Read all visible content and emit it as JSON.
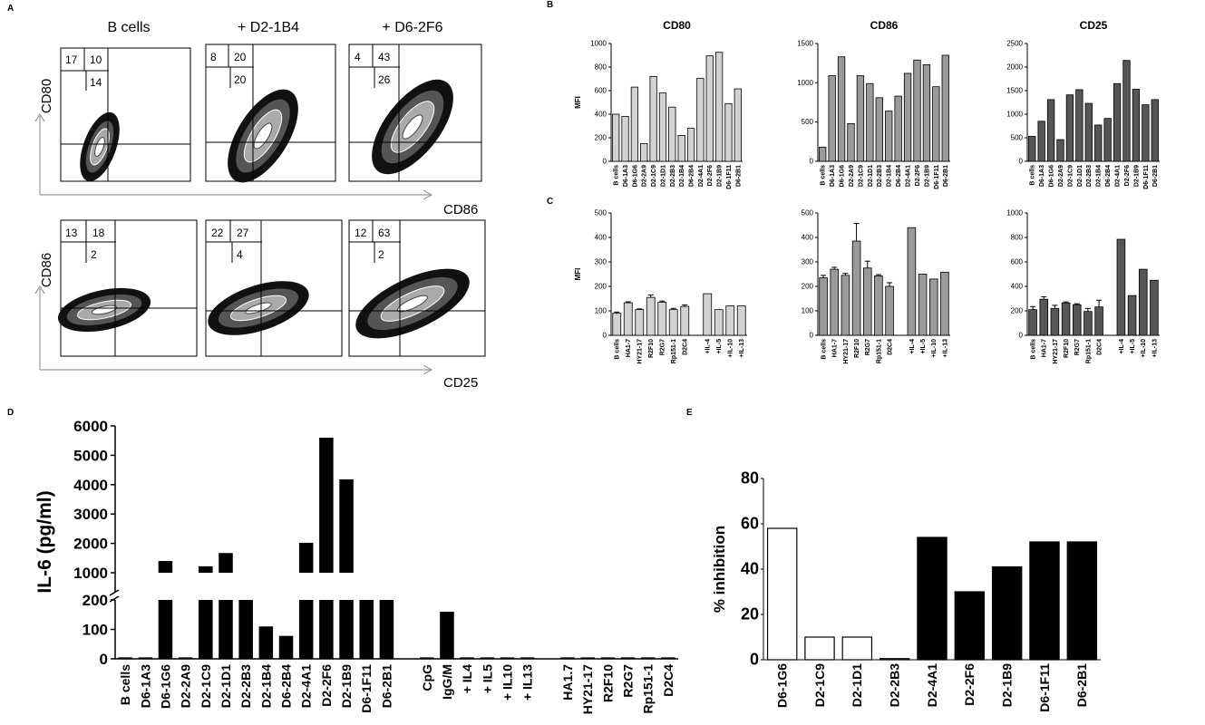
{
  "panel_letters": {
    "a": "A",
    "b": "B",
    "c": "C",
    "d": "D",
    "e": "E"
  },
  "panel_a": {
    "column_titles": [
      "B cells",
      "+ D2-1B4",
      "+ D6-2F6"
    ],
    "top_y_label": "CD80",
    "top_x_label": "CD86",
    "bottom_y_label": "CD86",
    "bottom_x_label": "CD25",
    "top_quadrants": [
      {
        "tl": "17",
        "tr": "10",
        "br": "14"
      },
      {
        "tl": "8",
        "tr": "20",
        "br": "20"
      },
      {
        "tl": "4",
        "tr": "43",
        "br": "26"
      }
    ],
    "bottom_quadrants": [
      {
        "tl": "13",
        "tr": "18",
        "br": "2"
      },
      {
        "tl": "22",
        "tr": "27",
        "br": "4"
      },
      {
        "tl": "12",
        "tr": "63",
        "br": "2"
      }
    ]
  },
  "chart_data": [
    {
      "id": "B-CD80",
      "type": "bar",
      "title": "CD80",
      "ylabel": "MFI",
      "ylim": [
        0,
        1000
      ],
      "yticks": [
        0,
        200,
        400,
        600,
        800,
        1000
      ],
      "color": "#d2d2d2",
      "categories": [
        "B cells",
        "D6-1A3",
        "D6-1G6",
        "D2-2A9",
        "D2-1C9",
        "D2-1D1",
        "D2-2B3",
        "D2-1B4",
        "D6-2B4",
        "D2-4A1",
        "D2-2F6",
        "D2-1B9",
        "D6-1F11",
        "D6-2B1"
      ],
      "values": [
        400,
        380,
        630,
        150,
        720,
        580,
        460,
        220,
        280,
        705,
        895,
        925,
        490,
        615
      ]
    },
    {
      "id": "B-CD86",
      "type": "bar",
      "title": "CD86",
      "ylabel": "",
      "ylim": [
        0,
        1500
      ],
      "yticks": [
        0,
        500,
        1000,
        1500
      ],
      "color": "#9a9a9a",
      "categories": [
        "B cells",
        "D6-1A3",
        "D6-1G6",
        "D2-2A9",
        "D2-1C9",
        "D2-1D1",
        "D2-2B3",
        "D2-1B4",
        "D6-2B4",
        "D2-4A1",
        "D2-2F6",
        "D2-1B9",
        "D6-1F11",
        "D6-2B1"
      ],
      "values": [
        180,
        1090,
        1330,
        480,
        1090,
        990,
        810,
        640,
        830,
        1120,
        1290,
        1230,
        950,
        1350
      ]
    },
    {
      "id": "B-CD25",
      "type": "bar",
      "title": "CD25",
      "ylabel": "",
      "ylim": [
        0,
        2500
      ],
      "yticks": [
        0,
        500,
        1000,
        1500,
        2000,
        2500
      ],
      "color": "#565656",
      "categories": [
        "B cells",
        "D6-1A3",
        "D6-1G6",
        "D2-2A9",
        "D2-1C9",
        "D2-1D1",
        "D2-2B3",
        "D2-1B4",
        "D6-2B4",
        "D2-4A1",
        "D2-2F6",
        "D2-1B9",
        "D6-1F11",
        "D6-2B1"
      ],
      "values": [
        530,
        850,
        1310,
        460,
        1410,
        1520,
        1230,
        770,
        910,
        1650,
        2140,
        1530,
        1200,
        1310
      ]
    },
    {
      "id": "C-CD80",
      "type": "bar",
      "title": "",
      "ylabel": "MFI",
      "ylim": [
        0,
        500
      ],
      "yticks": [
        0,
        100,
        200,
        300,
        400,
        500
      ],
      "color": "#d2d2d2",
      "categories": [
        "B cells",
        "HA1-7",
        "HY21-17",
        "R2F10",
        "R2G7",
        "Rp151-1",
        "D2C4",
        "",
        "+IL-4",
        "+IL-5",
        "+IL-10",
        "+IL-13"
      ],
      "values": [
        90,
        133,
        105,
        155,
        135,
        105,
        118,
        null,
        170,
        105,
        120,
        120
      ],
      "errors": [
        5,
        4,
        3,
        10,
        5,
        5,
        6,
        null,
        0,
        0,
        0,
        0
      ]
    },
    {
      "id": "C-CD86",
      "type": "bar",
      "title": "",
      "ylabel": "",
      "ylim": [
        0,
        500
      ],
      "yticks": [
        0,
        100,
        200,
        300,
        400,
        500
      ],
      "color": "#9a9a9a",
      "categories": [
        "B cells",
        "HA1-7",
        "HY21-17",
        "R2F10",
        "R2G7",
        "Rp151-1",
        "D2C4",
        "",
        "+IL-4",
        "+IL-5",
        "+IL-10",
        "+IL-13"
      ],
      "values": [
        235,
        270,
        245,
        385,
        275,
        243,
        200,
        null,
        440,
        250,
        230,
        258
      ],
      "errors": [
        10,
        8,
        8,
        72,
        28,
        5,
        15,
        null,
        0,
        0,
        0,
        0
      ]
    },
    {
      "id": "C-CD25",
      "type": "bar",
      "title": "",
      "ylabel": "",
      "ylim": [
        0,
        1000
      ],
      "yticks": [
        0,
        200,
        400,
        600,
        800,
        1000
      ],
      "color": "#565656",
      "categories": [
        "B cells",
        "HA1-7",
        "HY21-17",
        "R2F10",
        "R2G7",
        "Rp151-1",
        "D2C4",
        "",
        "+IL-4",
        "+IL-5",
        "+IL-10",
        "+IL-13"
      ],
      "values": [
        210,
        295,
        220,
        265,
        250,
        195,
        232,
        null,
        785,
        325,
        540,
        450
      ],
      "errors": [
        25,
        20,
        25,
        8,
        8,
        25,
        55,
        null,
        0,
        0,
        0,
        0
      ]
    },
    {
      "id": "D",
      "type": "bar",
      "title": "",
      "ylabel": "IL-6 (pg/ml)",
      "axis_break": {
        "lower_max": 200,
        "upper_min": 1000,
        "upper_max": 6000
      },
      "yticks": [
        0,
        100,
        200,
        1000,
        2000,
        3000,
        4000,
        5000,
        6000
      ],
      "color": "#000000",
      "categories": [
        "B cells",
        "D6-1A3",
        "D6-1G6",
        "D2-2A9",
        "D2-1C9",
        "D2-1D1",
        "D2-2B3",
        "D2-1B4",
        "D6-2B4",
        "D2-4A1",
        "D2-2F6",
        "D2-1B9",
        "D6-1F11",
        "D6-2B1",
        "",
        "CpG",
        "IgG/M",
        "+ IL4",
        "+ IL5",
        "+ IL10",
        "+ IL13",
        "",
        "HA1.7",
        "HY21-17",
        "R2F10",
        "R2G7",
        "Rp151-1",
        "D2C4"
      ],
      "values": [
        5,
        5,
        1400,
        5,
        1220,
        1670,
        600,
        110,
        78,
        2020,
        5600,
        4180,
        220,
        600,
        null,
        5,
        160,
        5,
        5,
        5,
        5,
        null,
        5,
        5,
        5,
        5,
        5,
        5
      ]
    },
    {
      "id": "E",
      "type": "bar",
      "title": "",
      "ylabel": "% inhibition",
      "ylim": [
        0,
        80
      ],
      "yticks": [
        0,
        20,
        40,
        60,
        80
      ],
      "categories": [
        "D6-1G6",
        "D2-1C9",
        "D2-1D1",
        "D2-2B3",
        "D2-4A1",
        "D2-2F6",
        "D2-1B9",
        "D6-1F11",
        "D6-2B1"
      ],
      "values": [
        58,
        10,
        10,
        0.5,
        54,
        30,
        41,
        52,
        52
      ],
      "fills": [
        "#ffffff",
        "#ffffff",
        "#ffffff",
        "#ffffff",
        "#000000",
        "#000000",
        "#000000",
        "#000000",
        "#000000"
      ]
    }
  ]
}
